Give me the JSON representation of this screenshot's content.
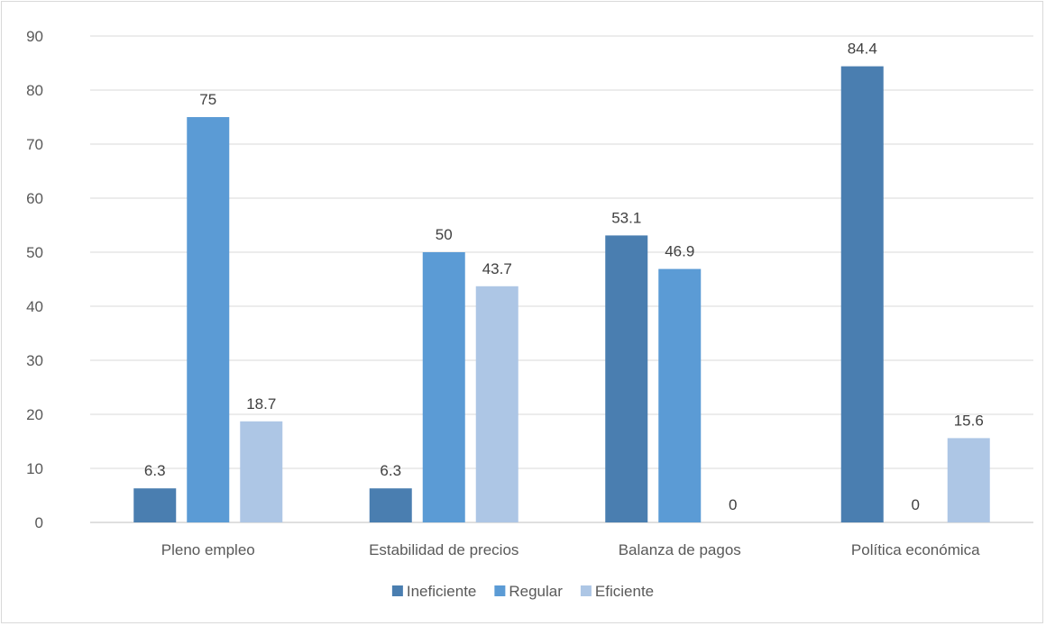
{
  "chart_data": {
    "type": "bar",
    "categories": [
      "Pleno empleo",
      "Estabilidad de precios",
      "Balanza de pagos",
      "Política económica"
    ],
    "series": [
      {
        "name": "Ineficiente",
        "color": "#4a7eb0",
        "values": [
          6.3,
          6.3,
          53.1,
          84.4
        ]
      },
      {
        "name": "Regular",
        "color": "#5b9bd5",
        "values": [
          75,
          50,
          46.9,
          0
        ]
      },
      {
        "name": "Eficiente",
        "color": "#adc6e5",
        "values": [
          18.7,
          43.7,
          0,
          15.6
        ]
      }
    ],
    "yticks": [
      "0",
      "10",
      "20",
      "30",
      "40",
      "50",
      "60",
      "70",
      "80",
      "90"
    ],
    "ylim": [
      0,
      90
    ],
    "grid": true,
    "legend": "bottom",
    "data_labels": true
  }
}
